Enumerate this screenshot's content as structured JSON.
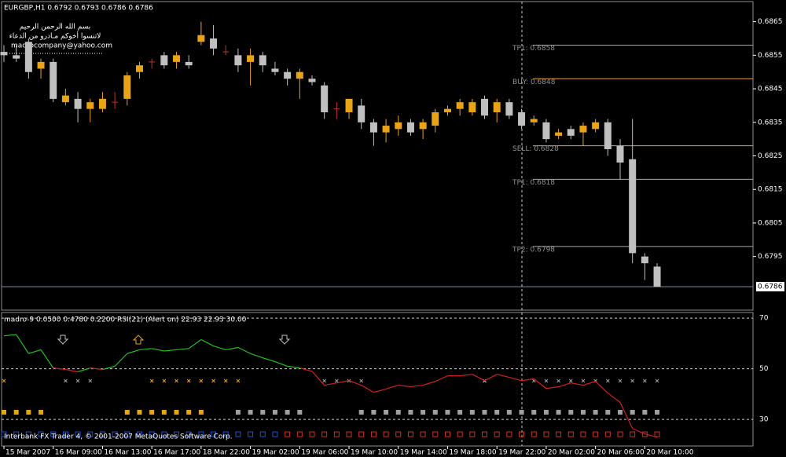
{
  "chart_data": [
    {
      "type": "candlestick",
      "title": "EURGBP,H1 0.6792 0.6793 0.6786 0.6786",
      "annotations": [
        "بسم الله الرحمن الرحيم",
        "لاتنسوا أخوكم مـادرو من الدعاء",
        "madrocompany@yahoo.com"
      ],
      "categories": [
        "15 Mar 2007",
        null,
        null,
        null,
        "16 Mar 09:00",
        null,
        null,
        null,
        "16 Mar 13:00",
        null,
        null,
        null,
        "16 Mar 17:00",
        null,
        null,
        null,
        "18 Mar 22:00",
        null,
        null,
        null,
        "19 Mar 02:00",
        null,
        null,
        null,
        "19 Mar 06:00",
        null,
        null,
        null,
        "19 Mar 10:00",
        null,
        null,
        null,
        "19 Mar 14:00",
        null,
        null,
        null,
        "19 Mar 18:00",
        null,
        null,
        null,
        "19 Mar 22:00",
        null,
        null,
        null,
        "20 Mar 02:00",
        null,
        null,
        null,
        "20 Mar 06:00",
        null,
        null,
        null,
        "20 Mar 10:00",
        null
      ],
      "open": [
        0.6856,
        0.6855,
        0.6859,
        0.6851,
        0.6853,
        0.6841,
        0.6842,
        0.6839,
        0.6839,
        0.6841,
        0.6842,
        0.685,
        0.6853,
        0.6855,
        0.6853,
        0.6853,
        0.6859,
        0.686,
        0.6856,
        0.6855,
        0.6853,
        0.6855,
        0.6851,
        0.685,
        0.6848,
        0.6848,
        0.6846,
        0.6839,
        0.6838,
        0.684,
        0.6835,
        0.6832,
        0.6833,
        0.6835,
        0.6833,
        0.6834,
        0.6838,
        0.6839,
        0.6838,
        0.6842,
        0.6838,
        0.6841,
        0.6838,
        0.6835,
        0.6835,
        0.6831,
        0.6833,
        0.6832,
        0.6833,
        0.6835,
        0.6828,
        0.6824,
        0.6795,
        0.6792
      ],
      "high": [
        0.6858,
        0.6858,
        0.686,
        0.6854,
        0.6854,
        0.6845,
        0.6844,
        0.6842,
        0.6844,
        0.6844,
        0.685,
        0.6853,
        0.6854,
        0.6856,
        0.6856,
        0.6855,
        0.6865,
        0.6864,
        0.6858,
        0.6857,
        0.6857,
        0.6856,
        0.6853,
        0.6851,
        0.6851,
        0.6849,
        0.6847,
        0.6841,
        0.6842,
        0.6842,
        0.6836,
        0.6836,
        0.6837,
        0.6836,
        0.6836,
        0.6839,
        0.684,
        0.6842,
        0.6842,
        0.6843,
        0.6842,
        0.6842,
        0.6839,
        0.6837,
        0.6836,
        0.6833,
        0.6834,
        0.6835,
        0.6836,
        0.6836,
        0.683,
        0.6836,
        0.6796,
        0.6793
      ],
      "low": [
        0.6853,
        0.6853,
        0.6848,
        0.6848,
        0.6841,
        0.684,
        0.6835,
        0.6835,
        0.6838,
        0.6839,
        0.684,
        0.6848,
        0.6851,
        0.6851,
        0.6851,
        0.6851,
        0.6858,
        0.6855,
        0.6855,
        0.685,
        0.6846,
        0.685,
        0.6849,
        0.6846,
        0.6842,
        0.6846,
        0.6836,
        0.6836,
        0.6836,
        0.6833,
        0.6828,
        0.6829,
        0.6831,
        0.6831,
        0.683,
        0.6832,
        0.6837,
        0.6837,
        0.6837,
        0.6836,
        0.6835,
        0.6836,
        0.6833,
        0.6834,
        0.6829,
        0.683,
        0.683,
        0.6828,
        0.6832,
        0.6825,
        0.6818,
        0.6793,
        0.6788,
        0.6786
      ],
      "close": [
        0.6855,
        0.6854,
        0.685,
        0.6853,
        0.6842,
        0.6843,
        0.6839,
        0.6841,
        0.6842,
        0.6841,
        0.6849,
        0.6852,
        0.6853,
        0.6852,
        0.6855,
        0.6852,
        0.6861,
        0.6857,
        0.6856,
        0.6852,
        0.6855,
        0.6852,
        0.685,
        0.6848,
        0.685,
        0.6847,
        0.6838,
        0.6839,
        0.6842,
        0.6835,
        0.6832,
        0.6834,
        0.6835,
        0.6832,
        0.6835,
        0.6838,
        0.6839,
        0.6841,
        0.6841,
        0.6837,
        0.6841,
        0.6837,
        0.6834,
        0.6836,
        0.683,
        0.6832,
        0.6831,
        0.6834,
        0.6835,
        0.6827,
        0.6823,
        0.6796,
        0.6793,
        0.6786
      ],
      "up_color": "#e8a317",
      "down_color": "#c0c0c0",
      "doji_color": "#c03030",
      "ylim": [
        0.6779,
        0.6871
      ],
      "yticks": [
        0.6865,
        0.6855,
        0.6845,
        0.6835,
        0.6825,
        0.6815,
        0.6805,
        0.6795
      ],
      "levels": [
        {
          "label": "TP1: 0.6858",
          "value": 0.6858,
          "color": "#a8a8a8"
        },
        {
          "label": "BUY: 0.6848",
          "value": 0.6848,
          "color": "#e8a33a"
        },
        {
          "label": "SELL: 0.6828",
          "value": 0.6828,
          "color": "#e8a33a"
        },
        {
          "label": "TP1: 0.6818",
          "value": 0.6818,
          "color": "#a8a8a8"
        },
        {
          "label": "TP2: 0.6798",
          "value": 0.6798,
          "color": "#a8a8a8"
        }
      ],
      "last_price": 0.6786,
      "last_price_color": "#8090a8"
    },
    {
      "type": "line",
      "title": "madro-9 0.0500 0.4780 0.2200 RSI(21) (Alert on) 22.93 22.93 30.00",
      "footer": "Interbank FX Trader 4, © 2001-2007 MetaQuotes Software Corp.",
      "values": [
        63,
        63.5,
        56,
        57.5,
        50.3,
        49.7,
        48.8,
        50.3,
        49.7,
        51,
        56,
        57.5,
        58,
        57,
        57.5,
        58,
        61.5,
        59,
        57.5,
        58.4,
        56,
        54.3,
        52.8,
        51,
        50.3,
        49,
        43.5,
        44.4,
        45.3,
        43.5,
        40.7,
        42,
        43.5,
        42.9,
        43.5,
        45,
        47.2,
        47.2,
        47.8,
        45.3,
        47.8,
        46.6,
        45.3,
        46,
        42.2,
        42.9,
        44.4,
        43.5,
        45,
        40.4,
        36.7,
        26.4,
        24.3,
        22.93
      ],
      "color_up": "#20c020",
      "color_down": "#d02020",
      "ylim": [
        19.5,
        72.2
      ],
      "yticks": [
        30,
        50,
        70
      ],
      "signal_rows": [
        {
          "marker": "x",
          "colors": [
            "#e8a317",
            null,
            null,
            null,
            null,
            "#a0a0a0",
            "#a0a0a0",
            "#a0a0a0",
            null,
            null,
            null,
            null,
            "#e8a317",
            "#e8a317",
            "#e8a317",
            "#e8a317",
            "#e8a317",
            "#e8a317",
            "#e8a317",
            "#e8a317",
            null,
            null,
            null,
            null,
            null,
            null,
            "#a0a0a0",
            "#a0a0a0",
            "#a0a0a0",
            "#a0a0a0",
            null,
            null,
            null,
            null,
            null,
            null,
            null,
            null,
            null,
            "#e0e0e0",
            null,
            null,
            null,
            "#a0a0a0",
            "#a0a0a0",
            "#a0a0a0",
            "#a0a0a0",
            "#a0a0a0",
            "#a0a0a0",
            "#a0a0a0",
            "#a0a0a0",
            "#a0a0a0",
            "#a0a0a0",
            "#a0a0a0"
          ]
        },
        {
          "marker": "square",
          "colors": [
            "#e8a317",
            "#e8a317",
            "#e8a317",
            "#e8a317",
            null,
            null,
            null,
            null,
            null,
            null,
            "#e8a317",
            "#e8a317",
            "#e8a317",
            "#e8a317",
            "#e8a317",
            "#e8a317",
            "#e8a317",
            null,
            null,
            "#a0a0a0",
            "#a0a0a0",
            "#a0a0a0",
            "#a0a0a0",
            "#a0a0a0",
            "#a0a0a0",
            null,
            null,
            null,
            null,
            "#a0a0a0",
            "#a0a0a0",
            "#a0a0a0",
            "#a0a0a0",
            "#a0a0a0",
            "#a0a0a0",
            "#a0a0a0",
            "#a0a0a0",
            "#a0a0a0",
            "#a0a0a0",
            "#a0a0a0",
            "#a0a0a0",
            "#a0a0a0",
            "#a0a0a0",
            "#a0a0a0",
            "#a0a0a0",
            "#a0a0a0",
            "#a0a0a0",
            "#a0a0a0",
            "#a0a0a0",
            "#a0a0a0",
            "#a0a0a0",
            "#a0a0a0",
            "#a0a0a0",
            "#a0a0a0"
          ]
        },
        {
          "marker": "hollow-square",
          "colors": [
            "#2050d0",
            "#2050d0",
            "#2050d0",
            "#2050d0",
            "#2050d0",
            "#2050d0",
            "#2050d0",
            "#2050d0",
            "#2050d0",
            "#2050d0",
            "#2050d0",
            "#2050d0",
            "#2050d0",
            "#2050d0",
            "#2050d0",
            "#2050d0",
            "#2050d0",
            "#2050d0",
            "#2050d0",
            "#2050d0",
            "#2050d0",
            "#2050d0",
            "#2050d0",
            "#d03020",
            "#d03020",
            "#d03020",
            "#d03020",
            "#d03020",
            "#d03020",
            "#d03020",
            "#d03020",
            "#d03020",
            "#d03020",
            "#d03020",
            "#d03020",
            "#d03020",
            "#d03020",
            "#d03020",
            "#d03020",
            "#d03020",
            "#d03020",
            "#d03020",
            "#d03020",
            "#d03020",
            "#d03020",
            "#d03020",
            "#d03020",
            "#d03020",
            "#d03020",
            "#d03020",
            "#d03020",
            "#d03020",
            "#d03020",
            "#d03020"
          ]
        }
      ]
    }
  ]
}
